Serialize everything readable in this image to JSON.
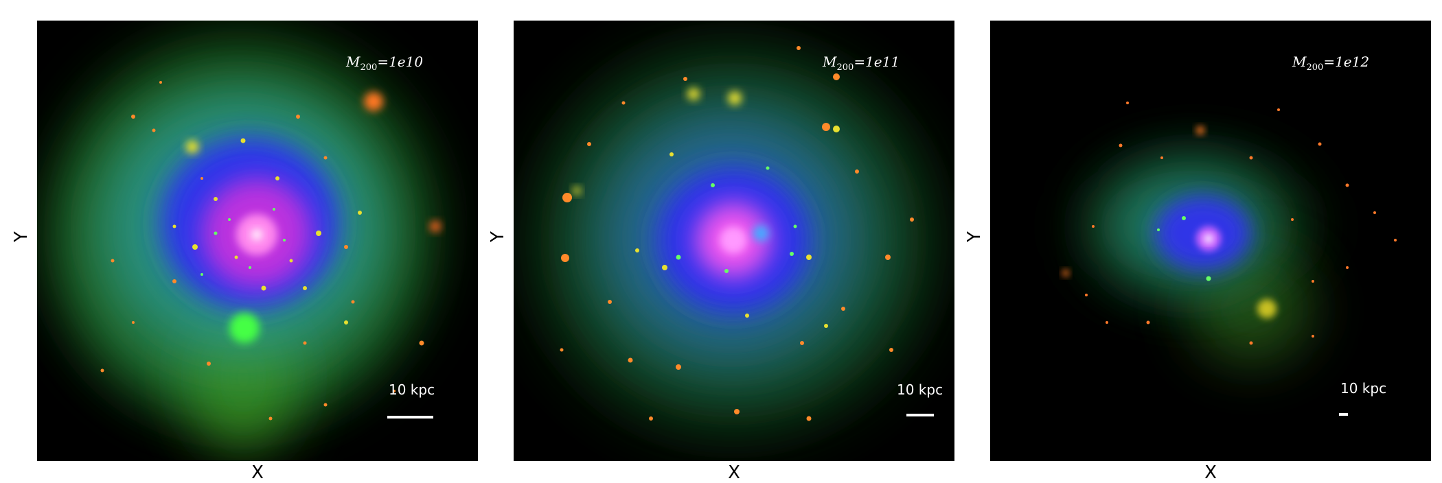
{
  "panels": [
    {
      "mass_label": {
        "symbol": "M",
        "subscript": "200",
        "value": "=1e10"
      },
      "scale_text": "10 kpc",
      "scale_fraction": 0.104,
      "xlabel": "X",
      "ylabel": "Y"
    },
    {
      "mass_label": {
        "symbol": "M",
        "subscript": "200",
        "value": "=1e11"
      },
      "scale_text": "10 kpc",
      "scale_fraction": 0.062,
      "xlabel": "X",
      "ylabel": "Y"
    },
    {
      "mass_label": {
        "symbol": "M",
        "subscript": "200",
        "value": "=1e12"
      },
      "scale_text": "10 kpc",
      "scale_fraction": 0.02,
      "xlabel": "X",
      "ylabel": "Y"
    }
  ],
  "colors": {
    "background": "#000000",
    "halo_green": "#2f8a2a",
    "halo_cyan": "#2a9a9a",
    "halo_blue": "#2a2aff",
    "core_magenta": "#ff55dd",
    "clump_orange": "#ff6a1a",
    "clump_yellow": "#e8e020"
  }
}
